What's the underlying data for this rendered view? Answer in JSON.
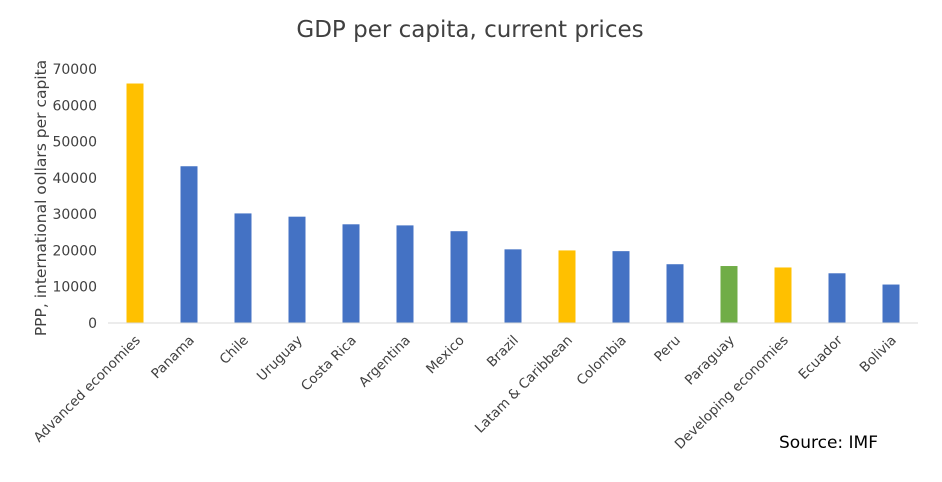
{
  "chart_data": {
    "type": "bar",
    "title": "GDP per capita, current prices",
    "xlabel": "",
    "ylabel": "PPP, international oollars per capita",
    "ylim": [
      0,
      70000
    ],
    "yticks": [
      0,
      10000,
      20000,
      30000,
      40000,
      50000,
      60000,
      70000
    ],
    "grid": false,
    "legend": "none",
    "categories": [
      "Advanced economies",
      "Panama",
      "Chile",
      "Uruguay",
      "Costa Rica",
      "Argentina",
      "Mexico",
      "Brazil",
      "Latam & Caribbean",
      "Colombia",
      "Peru",
      "Paraguay",
      "Developing economies",
      "Ecuador",
      "Bolivia"
    ],
    "values": [
      66000,
      43200,
      30200,
      29300,
      27200,
      26900,
      25300,
      20300,
      20000,
      19800,
      16200,
      15700,
      15300,
      13700,
      10600
    ],
    "bar_colors": [
      "#ffc000",
      "#4472c4",
      "#4472c4",
      "#4472c4",
      "#4472c4",
      "#4472c4",
      "#4472c4",
      "#4472c4",
      "#ffc000",
      "#4472c4",
      "#4472c4",
      "#70ad47",
      "#ffc000",
      "#4472c4",
      "#4472c4"
    ],
    "axis_color": "#d9d9d9"
  },
  "annotation": {
    "source": "Source: IMF"
  }
}
